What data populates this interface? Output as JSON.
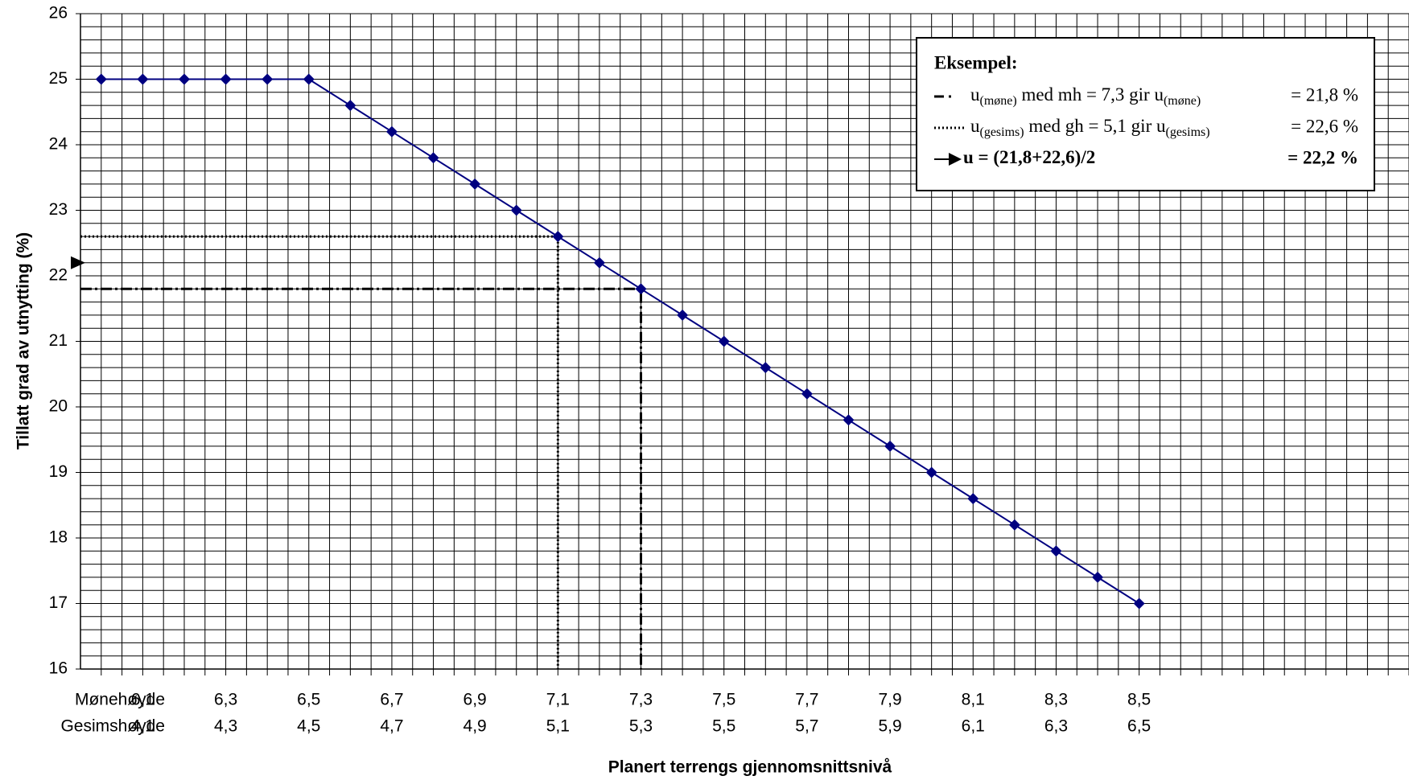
{
  "chart_data": {
    "type": "line",
    "x_title": "Planert terrengs gjennomsnittsnivå",
    "y_title": "Tillatt grad av utnytting (%)",
    "x": [
      6.0,
      6.1,
      6.2,
      6.3,
      6.4,
      6.5,
      6.6,
      6.7,
      6.8,
      6.9,
      7.0,
      7.1,
      7.2,
      7.3,
      7.4,
      7.5,
      7.6,
      7.7,
      7.8,
      7.9,
      8.0,
      8.1,
      8.2,
      8.3,
      8.4,
      8.5
    ],
    "series": [
      {
        "color": "#000080",
        "values": [
          25,
          25,
          25,
          25,
          25,
          25,
          24.6,
          24.2,
          23.8,
          23.4,
          23.0,
          22.6,
          22.2,
          21.8,
          21.4,
          21.0,
          20.6,
          20.2,
          19.8,
          19.4,
          19.0,
          18.6,
          18.2,
          17.8,
          17.4,
          17.0
        ]
      }
    ],
    "xlim": [
      5.95,
      9.15
    ],
    "ylim": [
      16,
      26
    ],
    "yticks": [
      16,
      17,
      18,
      19,
      20,
      21,
      22,
      23,
      24,
      25,
      26
    ],
    "x_minor_step": 0.05,
    "y_minor_step": 0.2,
    "grid": true,
    "xtick_rows": [
      {
        "title": "Mønehøyde",
        "ticks": [
          {
            "value": 6.1,
            "label": "6,1"
          },
          {
            "value": 6.3,
            "label": "6,3"
          },
          {
            "value": 6.5,
            "label": "6,5"
          },
          {
            "value": 6.7,
            "label": "6,7"
          },
          {
            "value": 6.9,
            "label": "6,9"
          },
          {
            "value": 7.1,
            "label": "7,1"
          },
          {
            "value": 7.3,
            "label": "7,3"
          },
          {
            "value": 7.5,
            "label": "7,5"
          },
          {
            "value": 7.7,
            "label": "7,7"
          },
          {
            "value": 7.9,
            "label": "7,9"
          },
          {
            "value": 8.1,
            "label": "8,1"
          },
          {
            "value": 8.3,
            "label": "8,3"
          },
          {
            "value": 8.5,
            "label": "8,5"
          }
        ]
      },
      {
        "title": "Gesimshøyde",
        "ticks": [
          {
            "value": 6.1,
            "label": "4,1"
          },
          {
            "value": 6.3,
            "label": "4,3"
          },
          {
            "value": 6.5,
            "label": "4,5"
          },
          {
            "value": 6.7,
            "label": "4,7"
          },
          {
            "value": 6.9,
            "label": "4,9"
          },
          {
            "value": 7.1,
            "label": "5,1"
          },
          {
            "value": 7.3,
            "label": "5,3"
          },
          {
            "value": 7.5,
            "label": "5,5"
          },
          {
            "value": 7.7,
            "label": "5,7"
          },
          {
            "value": 7.9,
            "label": "5,9"
          },
          {
            "value": 8.1,
            "label": "6,1"
          },
          {
            "value": 8.3,
            "label": "6,3"
          },
          {
            "value": 8.5,
            "label": "6,5"
          }
        ]
      }
    ],
    "reference_lines": [
      {
        "x": 7.1,
        "y": 22.6,
        "style": "dotted"
      },
      {
        "x": 7.3,
        "y": 21.8,
        "style": "dashdot"
      }
    ],
    "arrow_y": 22.2,
    "legend_box": {
      "title": "Eksempel:",
      "lines": [
        {
          "style": "dashdot",
          "parts": [
            "u",
            "(møne)",
            " med mh = 7,3 gir u",
            "(møne)"
          ],
          "result": "= 21,8 %"
        },
        {
          "style": "dotted",
          "parts": [
            "u",
            "(gesims)",
            " med gh = 5,1 gir u",
            "(gesims)"
          ],
          "result": "= 22,6 %"
        },
        {
          "style": "arrow",
          "parts": [
            "u = (21,8+22,6)/2"
          ],
          "result": "= 22,2 %"
        }
      ]
    }
  }
}
